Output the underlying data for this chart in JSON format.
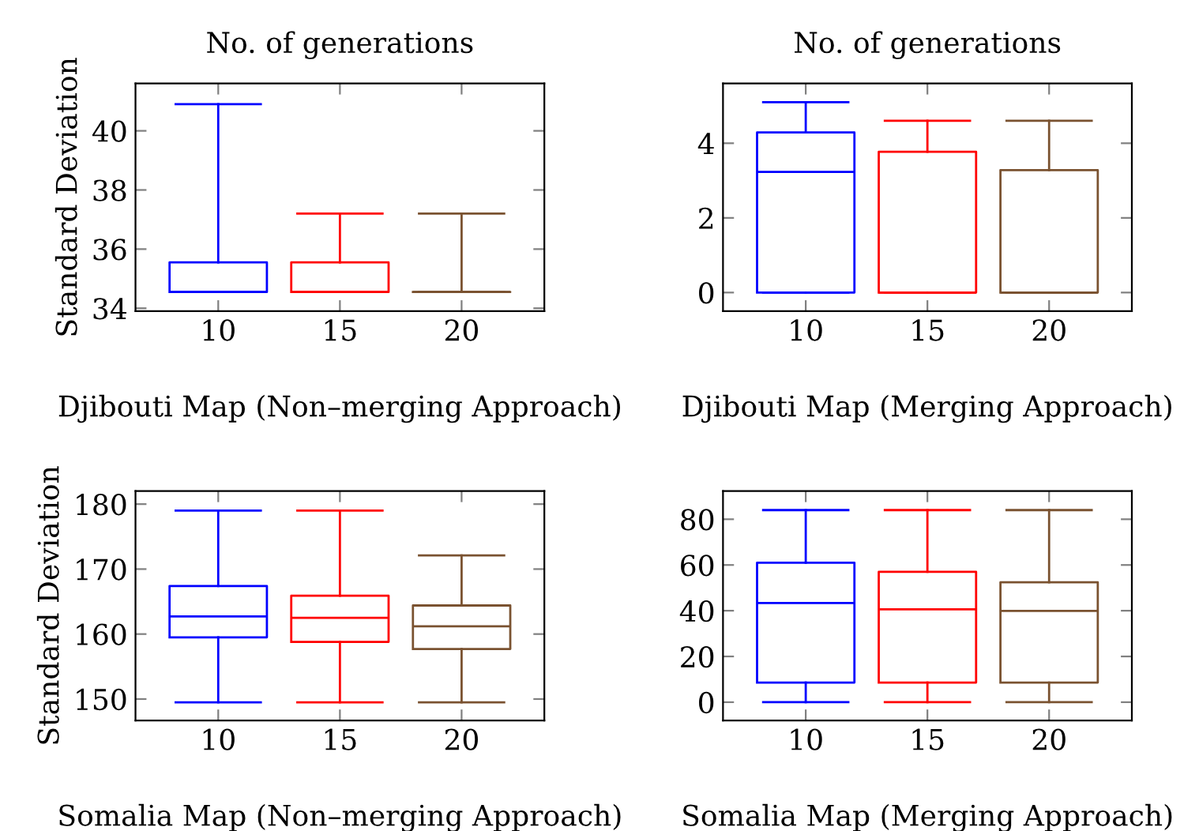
{
  "chart_data": [
    {
      "type": "box",
      "title": "No. of generations",
      "xlabel": "Djibouti Map (Non–merging Approach)",
      "ylabel": "Standard Deviation",
      "categories": [
        "10",
        "15",
        "20"
      ],
      "colors": [
        "#0000ff",
        "#ff0000",
        "#7a5230"
      ],
      "ylim": [
        33.9,
        41.6
      ],
      "yticks": [
        34,
        36,
        38,
        40
      ],
      "boxes": [
        {
          "low": 34.55,
          "q1": 34.55,
          "median": 34.55,
          "q3": 35.55,
          "high": 40.9
        },
        {
          "low": 34.55,
          "q1": 34.55,
          "median": 34.55,
          "q3": 35.55,
          "high": 37.2
        },
        {
          "low": 34.55,
          "q1": 34.55,
          "median": 34.55,
          "q3": 34.55,
          "high": 37.2
        }
      ]
    },
    {
      "type": "box",
      "title": "No. of generations",
      "xlabel": "Djibouti Map (Merging Approach)",
      "categories": [
        "10",
        "15",
        "20"
      ],
      "colors": [
        "#0000ff",
        "#ff0000",
        "#7a5230"
      ],
      "ylim": [
        -0.5,
        5.6
      ],
      "yticks": [
        0,
        2,
        4
      ],
      "boxes": [
        {
          "low": 0,
          "q1": 0,
          "median": 3.23,
          "q3": 4.29,
          "high": 5.1
        },
        {
          "low": 0,
          "q1": 0,
          "median": 0,
          "q3": 3.77,
          "high": 4.6
        },
        {
          "low": 0,
          "q1": 0,
          "median": 0,
          "q3": 3.28,
          "high": 4.6
        }
      ]
    },
    {
      "type": "box",
      "xlabel": "Somalia Map (Non–merging Approach)",
      "ylabel": "Standard Deviation",
      "categories": [
        "10",
        "15",
        "20"
      ],
      "colors": [
        "#0000ff",
        "#ff0000",
        "#7a5230"
      ],
      "ylim": [
        146.7,
        182
      ],
      "yticks": [
        150,
        160,
        170,
        180
      ],
      "boxes": [
        {
          "low": 149.5,
          "q1": 159.5,
          "median": 162.7,
          "q3": 167.4,
          "high": 179
        },
        {
          "low": 149.5,
          "q1": 158.8,
          "median": 162.5,
          "q3": 165.9,
          "high": 179
        },
        {
          "low": 149.5,
          "q1": 157.7,
          "median": 161.2,
          "q3": 164.4,
          "high": 172.1
        }
      ]
    },
    {
      "type": "box",
      "xlabel": "Somalia Map (Merging Approach)",
      "categories": [
        "10",
        "15",
        "20"
      ],
      "colors": [
        "#0000ff",
        "#ff0000",
        "#7a5230"
      ],
      "ylim": [
        -8,
        92.3
      ],
      "yticks": [
        0,
        20,
        40,
        60,
        80
      ],
      "boxes": [
        {
          "low": 0,
          "q1": 8.6,
          "median": 43.4,
          "q3": 61,
          "high": 84
        },
        {
          "low": 0,
          "q1": 8.6,
          "median": 40.6,
          "q3": 57,
          "high": 84
        },
        {
          "low": 0,
          "q1": 8.6,
          "median": 39.9,
          "q3": 52.4,
          "high": 84
        }
      ]
    }
  ]
}
